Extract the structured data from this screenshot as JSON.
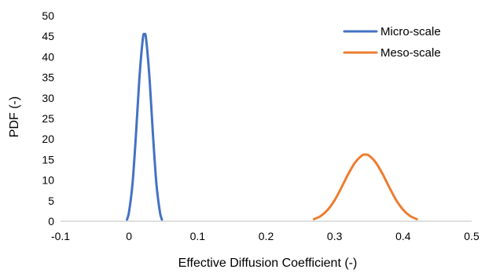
{
  "chart_data": {
    "type": "line",
    "title": "",
    "xlabel": "Effective Diffusion Coefficient (-)",
    "ylabel": "PDF (-)",
    "xlim": [
      -0.1,
      0.5
    ],
    "ylim": [
      0,
      50
    ],
    "x_ticks": [
      "-0.1",
      "0",
      "0.1",
      "0.2",
      "0.3",
      "0.4",
      "0.5"
    ],
    "y_ticks": [
      "0",
      "5",
      "10",
      "15",
      "20",
      "25",
      "30",
      "35",
      "40",
      "45",
      "50"
    ],
    "grid": false,
    "legend_position": "top-right",
    "series": [
      {
        "name": "Micro-scale",
        "color": "#4472C4",
        "points": [
          [
            -0.003,
            0.4
          ],
          [
            0.0,
            2.3
          ],
          [
            0.005,
            9.0
          ],
          [
            0.01,
            20.8
          ],
          [
            0.015,
            34.5
          ],
          [
            0.02,
            44.2
          ],
          [
            0.0225,
            45.5
          ],
          [
            0.025,
            44.2
          ],
          [
            0.03,
            34.5
          ],
          [
            0.035,
            20.8
          ],
          [
            0.04,
            9.0
          ],
          [
            0.045,
            2.3
          ],
          [
            0.048,
            0.4
          ]
        ]
      },
      {
        "name": "Meso-scale",
        "color": "#ED7D31",
        "points": [
          [
            0.27,
            0.5
          ],
          [
            0.28,
            1.3
          ],
          [
            0.29,
            2.8
          ],
          [
            0.3,
            5.1
          ],
          [
            0.31,
            8.2
          ],
          [
            0.32,
            11.5
          ],
          [
            0.33,
            14.3
          ],
          [
            0.34,
            16.0
          ],
          [
            0.345,
            16.2
          ],
          [
            0.35,
            16.0
          ],
          [
            0.36,
            14.3
          ],
          [
            0.37,
            11.5
          ],
          [
            0.38,
            8.2
          ],
          [
            0.39,
            5.1
          ],
          [
            0.4,
            2.8
          ],
          [
            0.41,
            1.3
          ],
          [
            0.42,
            0.5
          ]
        ]
      }
    ]
  }
}
